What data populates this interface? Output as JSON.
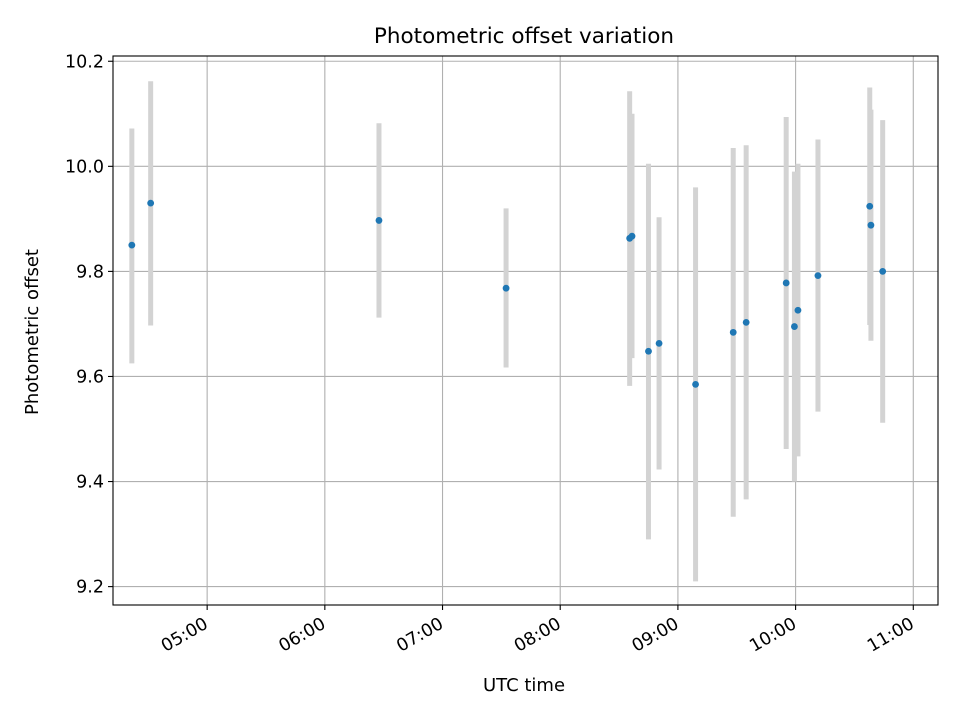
{
  "chart_data": {
    "type": "scatter",
    "title": "Photometric offset variation",
    "xlabel": "UTC time",
    "ylabel": "Photometric offset",
    "x_unit": "hour of day (UTC)",
    "xlim": [
      4.2,
      11.21
    ],
    "ylim": [
      9.165,
      10.21
    ],
    "xticks": [
      5,
      6,
      7,
      8,
      9,
      10,
      11
    ],
    "xtick_labels": [
      "05:00",
      "06:00",
      "07:00",
      "08:00",
      "09:00",
      "10:00",
      "11:00"
    ],
    "yticks": [
      9.2,
      9.4,
      9.6,
      9.8,
      10.0,
      10.2
    ],
    "ytick_labels": [
      "9.2",
      "9.4",
      "9.6",
      "9.8",
      "10.0",
      "10.2"
    ],
    "grid": true,
    "colors": {
      "point": "#1f77b4",
      "errorbar": "#d3d3d3",
      "grid": "#b0b0b0"
    },
    "series": [
      {
        "points": [
          {
            "x": 4.36,
            "y": 9.85,
            "lo": 9.625,
            "hi": 10.072
          },
          {
            "x": 4.52,
            "y": 9.93,
            "lo": 9.697,
            "hi": 10.162
          },
          {
            "x": 6.46,
            "y": 9.897,
            "lo": 9.712,
            "hi": 10.082
          },
          {
            "x": 7.54,
            "y": 9.768,
            "lo": 9.617,
            "hi": 9.92
          },
          {
            "x": 8.59,
            "y": 9.863,
            "lo": 9.582,
            "hi": 10.143
          },
          {
            "x": 8.61,
            "y": 9.867,
            "lo": 9.635,
            "hi": 10.1
          },
          {
            "x": 8.75,
            "y": 9.648,
            "lo": 9.29,
            "hi": 10.005
          },
          {
            "x": 8.84,
            "y": 9.663,
            "lo": 9.423,
            "hi": 9.903
          },
          {
            "x": 9.15,
            "y": 9.585,
            "lo": 9.21,
            "hi": 9.96
          },
          {
            "x": 9.47,
            "y": 9.684,
            "lo": 9.333,
            "hi": 10.035
          },
          {
            "x": 9.58,
            "y": 9.703,
            "lo": 9.366,
            "hi": 10.04
          },
          {
            "x": 9.92,
            "y": 9.778,
            "lo": 9.462,
            "hi": 10.094
          },
          {
            "x": 9.99,
            "y": 9.695,
            "lo": 9.4,
            "hi": 9.99
          },
          {
            "x": 10.02,
            "y": 9.726,
            "lo": 9.448,
            "hi": 10.005
          },
          {
            "x": 10.19,
            "y": 9.792,
            "lo": 9.533,
            "hi": 10.051
          },
          {
            "x": 10.63,
            "y": 9.924,
            "lo": 9.698,
            "hi": 10.15
          },
          {
            "x": 10.64,
            "y": 9.888,
            "lo": 9.668,
            "hi": 10.108
          },
          {
            "x": 10.74,
            "y": 9.8,
            "lo": 9.512,
            "hi": 10.088
          }
        ]
      }
    ]
  }
}
